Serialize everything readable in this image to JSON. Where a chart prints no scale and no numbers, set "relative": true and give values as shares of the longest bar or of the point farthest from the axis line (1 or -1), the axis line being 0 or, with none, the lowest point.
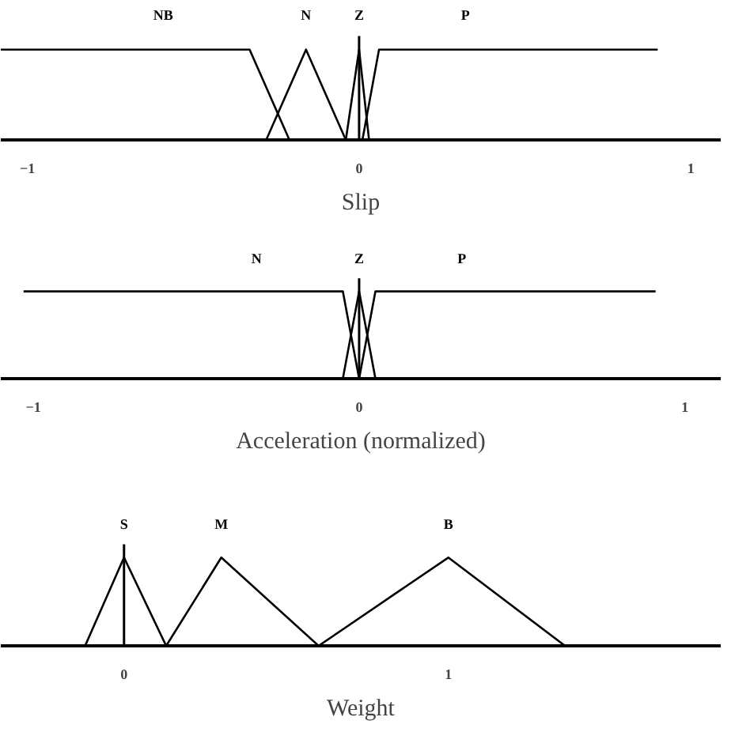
{
  "chart_data": [
    {
      "type": "line",
      "relative": true,
      "xlabel": "Slip",
      "xlim": [
        -1.08,
        1.09
      ],
      "xticks": [
        -1,
        0,
        1
      ],
      "tick_labels": "x",
      "grid": false,
      "ref_lines": [
        {
          "axis": "x",
          "value": 0
        }
      ],
      "series": [
        {
          "name": "NB",
          "color": "#000000",
          "x": [
            -1.08,
            -0.33,
            -0.21
          ],
          "values": [
            1,
            1,
            0
          ]
        },
        {
          "name": "N",
          "color": "#000000",
          "x": [
            -0.28,
            -0.16,
            -0.04
          ],
          "values": [
            0,
            1,
            0
          ]
        },
        {
          "name": "Z",
          "color": "#000000",
          "x": [
            -0.04,
            0,
            0.03
          ],
          "values": [
            0,
            1,
            0
          ]
        },
        {
          "name": "P",
          "color": "#000000",
          "x": [
            0.01,
            0.06,
            0.9
          ],
          "values": [
            0,
            1,
            1
          ]
        }
      ]
    },
    {
      "type": "line",
      "relative": true,
      "xlabel": "Acceleration (normalized)",
      "xlim": [
        -1.1,
        1.11
      ],
      "xticks": [
        -1,
        0,
        1
      ],
      "tick_labels": "x",
      "grid": false,
      "ref_lines": [
        {
          "axis": "x",
          "value": 0
        }
      ],
      "series": [
        {
          "name": "N",
          "color": "#000000",
          "x": [
            -1.03,
            -0.05,
            0.0
          ],
          "values": [
            1,
            1,
            0
          ]
        },
        {
          "name": "Z",
          "color": "#000000",
          "x": [
            -0.05,
            0,
            0.05
          ],
          "values": [
            0,
            1,
            0
          ]
        },
        {
          "name": "P",
          "color": "#000000",
          "x": [
            0.0,
            0.05,
            0.91
          ],
          "values": [
            0,
            1,
            1
          ]
        }
      ]
    },
    {
      "type": "line",
      "relative": true,
      "xlabel": "Weight",
      "xlim": [
        -0.38,
        1.84
      ],
      "xticks": [
        0,
        1
      ],
      "tick_labels": "x",
      "grid": false,
      "ref_lines": [
        {
          "axis": "x",
          "value": 0
        }
      ],
      "series": [
        {
          "name": "S",
          "color": "#000000",
          "x": [
            -0.12,
            0,
            0.13
          ],
          "values": [
            0,
            1,
            0
          ]
        },
        {
          "name": "M",
          "color": "#000000",
          "x": [
            0.13,
            0.3,
            0.6
          ],
          "values": [
            0,
            1,
            0
          ]
        },
        {
          "name": "B",
          "color": "#000000",
          "x": [
            0.6,
            1.0,
            1.36
          ],
          "values": [
            0,
            1,
            0
          ]
        }
      ]
    }
  ]
}
